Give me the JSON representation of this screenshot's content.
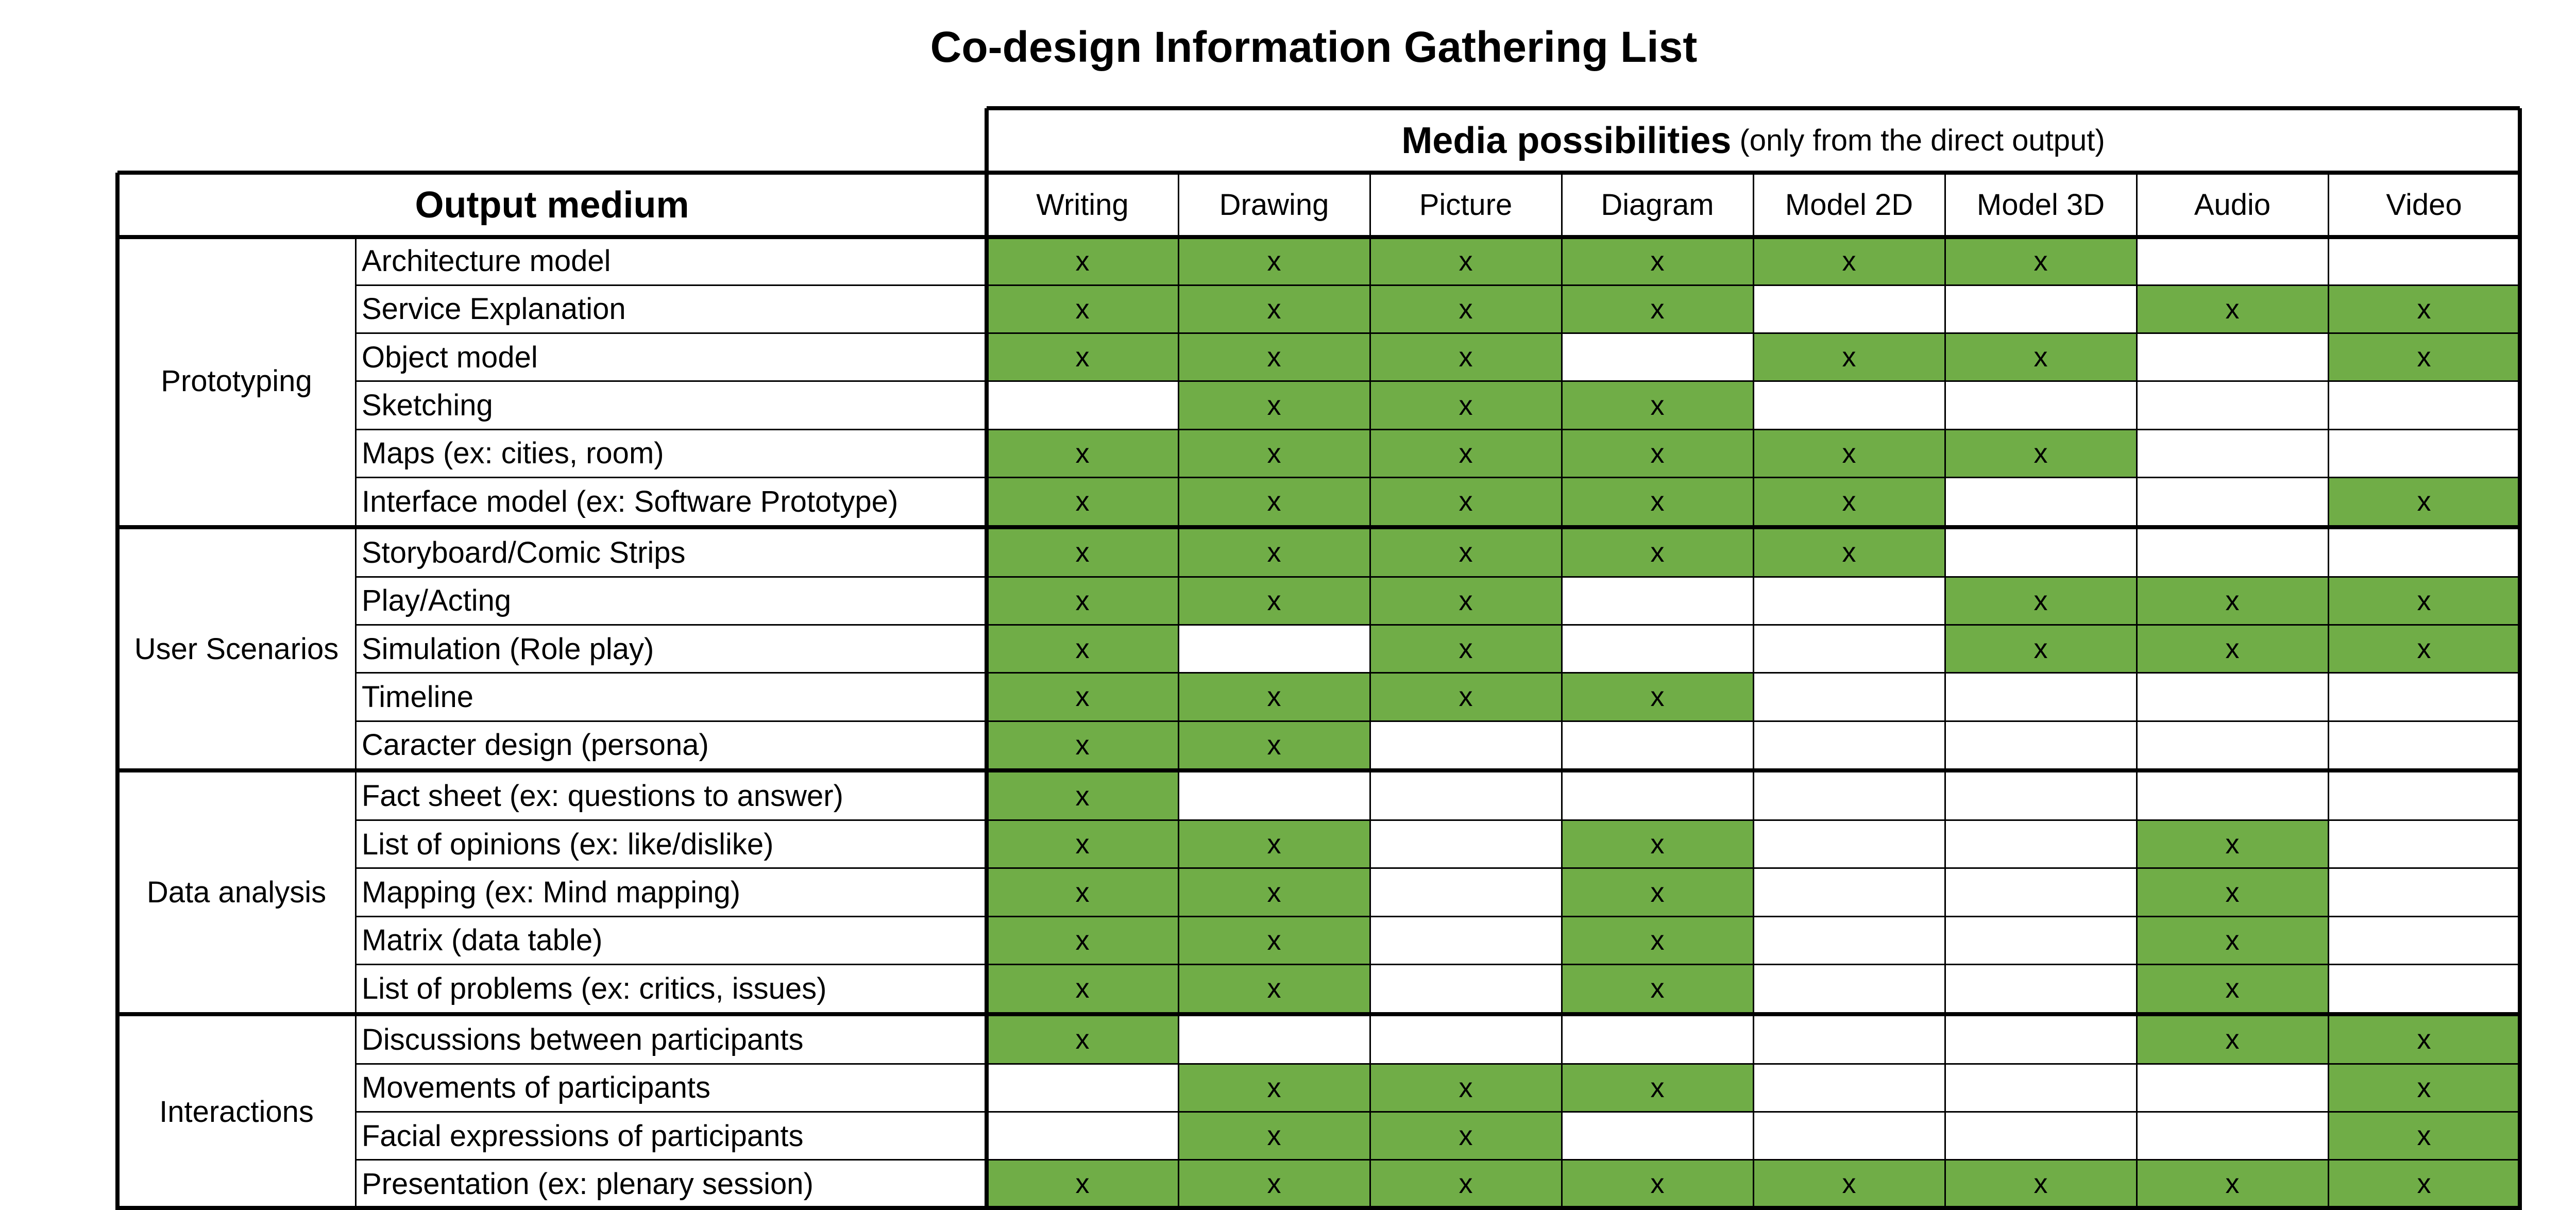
{
  "title": "Co-design Information Gathering List",
  "header": {
    "media_title": "Media possibilities",
    "media_subtitle": "(only from the direct output)",
    "output_medium": "Output medium",
    "columns": [
      "Writing",
      "Drawing",
      "Picture",
      "Diagram",
      "Model 2D",
      "Model 3D",
      "Audio",
      "Video"
    ]
  },
  "mark": "x",
  "colors": {
    "filled": "#70AD47",
    "empty": "#FFFFFF",
    "grid": "#000000"
  },
  "groups": [
    {
      "name": "Prototyping",
      "rows": [
        {
          "label": "Architecture model",
          "cells": [
            1,
            1,
            1,
            1,
            1,
            1,
            0,
            0
          ]
        },
        {
          "label": "Service Explanation",
          "cells": [
            1,
            1,
            1,
            1,
            0,
            0,
            1,
            1
          ]
        },
        {
          "label": "Object model",
          "cells": [
            1,
            1,
            1,
            0,
            1,
            1,
            0,
            1
          ]
        },
        {
          "label": "Sketching",
          "cells": [
            0,
            1,
            1,
            1,
            0,
            0,
            0,
            0
          ]
        },
        {
          "label": "Maps (ex: cities, room)",
          "cells": [
            1,
            1,
            1,
            1,
            1,
            1,
            0,
            0
          ]
        },
        {
          "label": "Interface model (ex: Software Prototype)",
          "cells": [
            1,
            1,
            1,
            1,
            1,
            0,
            0,
            1
          ]
        }
      ]
    },
    {
      "name": "User Scenarios",
      "rows": [
        {
          "label": "Storyboard/Comic Strips",
          "cells": [
            1,
            1,
            1,
            1,
            1,
            0,
            0,
            0
          ]
        },
        {
          "label": "Play/Acting",
          "cells": [
            1,
            1,
            1,
            0,
            0,
            1,
            1,
            1
          ]
        },
        {
          "label": "Simulation (Role play)",
          "cells": [
            1,
            0,
            1,
            0,
            0,
            1,
            1,
            1
          ]
        },
        {
          "label": "Timeline",
          "cells": [
            1,
            1,
            1,
            1,
            0,
            0,
            0,
            0
          ]
        },
        {
          "label": "Caracter design (persona)",
          "cells": [
            1,
            1,
            0,
            0,
            0,
            0,
            0,
            0
          ]
        }
      ]
    },
    {
      "name": "Data analysis",
      "rows": [
        {
          "label": "Fact sheet (ex: questions to answer)",
          "cells": [
            1,
            0,
            0,
            0,
            0,
            0,
            0,
            0
          ]
        },
        {
          "label": "List of opinions (ex: like/dislike)",
          "cells": [
            1,
            1,
            0,
            1,
            0,
            0,
            1,
            0
          ]
        },
        {
          "label": "Mapping (ex: Mind mapping)",
          "cells": [
            1,
            1,
            0,
            1,
            0,
            0,
            1,
            0
          ]
        },
        {
          "label": "Matrix (data table)",
          "cells": [
            1,
            1,
            0,
            1,
            0,
            0,
            1,
            0
          ]
        },
        {
          "label": "List of problems (ex: critics, issues)",
          "cells": [
            1,
            1,
            0,
            1,
            0,
            0,
            1,
            0
          ]
        }
      ]
    },
    {
      "name": "Interactions",
      "rows": [
        {
          "label": "Discussions between participants",
          "cells": [
            1,
            0,
            0,
            0,
            0,
            0,
            1,
            1
          ]
        },
        {
          "label": "Movements of participants",
          "cells": [
            0,
            1,
            1,
            1,
            0,
            0,
            0,
            1
          ]
        },
        {
          "label": "Facial expressions of participants",
          "cells": [
            0,
            1,
            1,
            0,
            0,
            0,
            0,
            1
          ]
        },
        {
          "label": "Presentation (ex: plenary session)",
          "cells": [
            1,
            1,
            1,
            1,
            1,
            1,
            1,
            1
          ]
        }
      ]
    }
  ]
}
